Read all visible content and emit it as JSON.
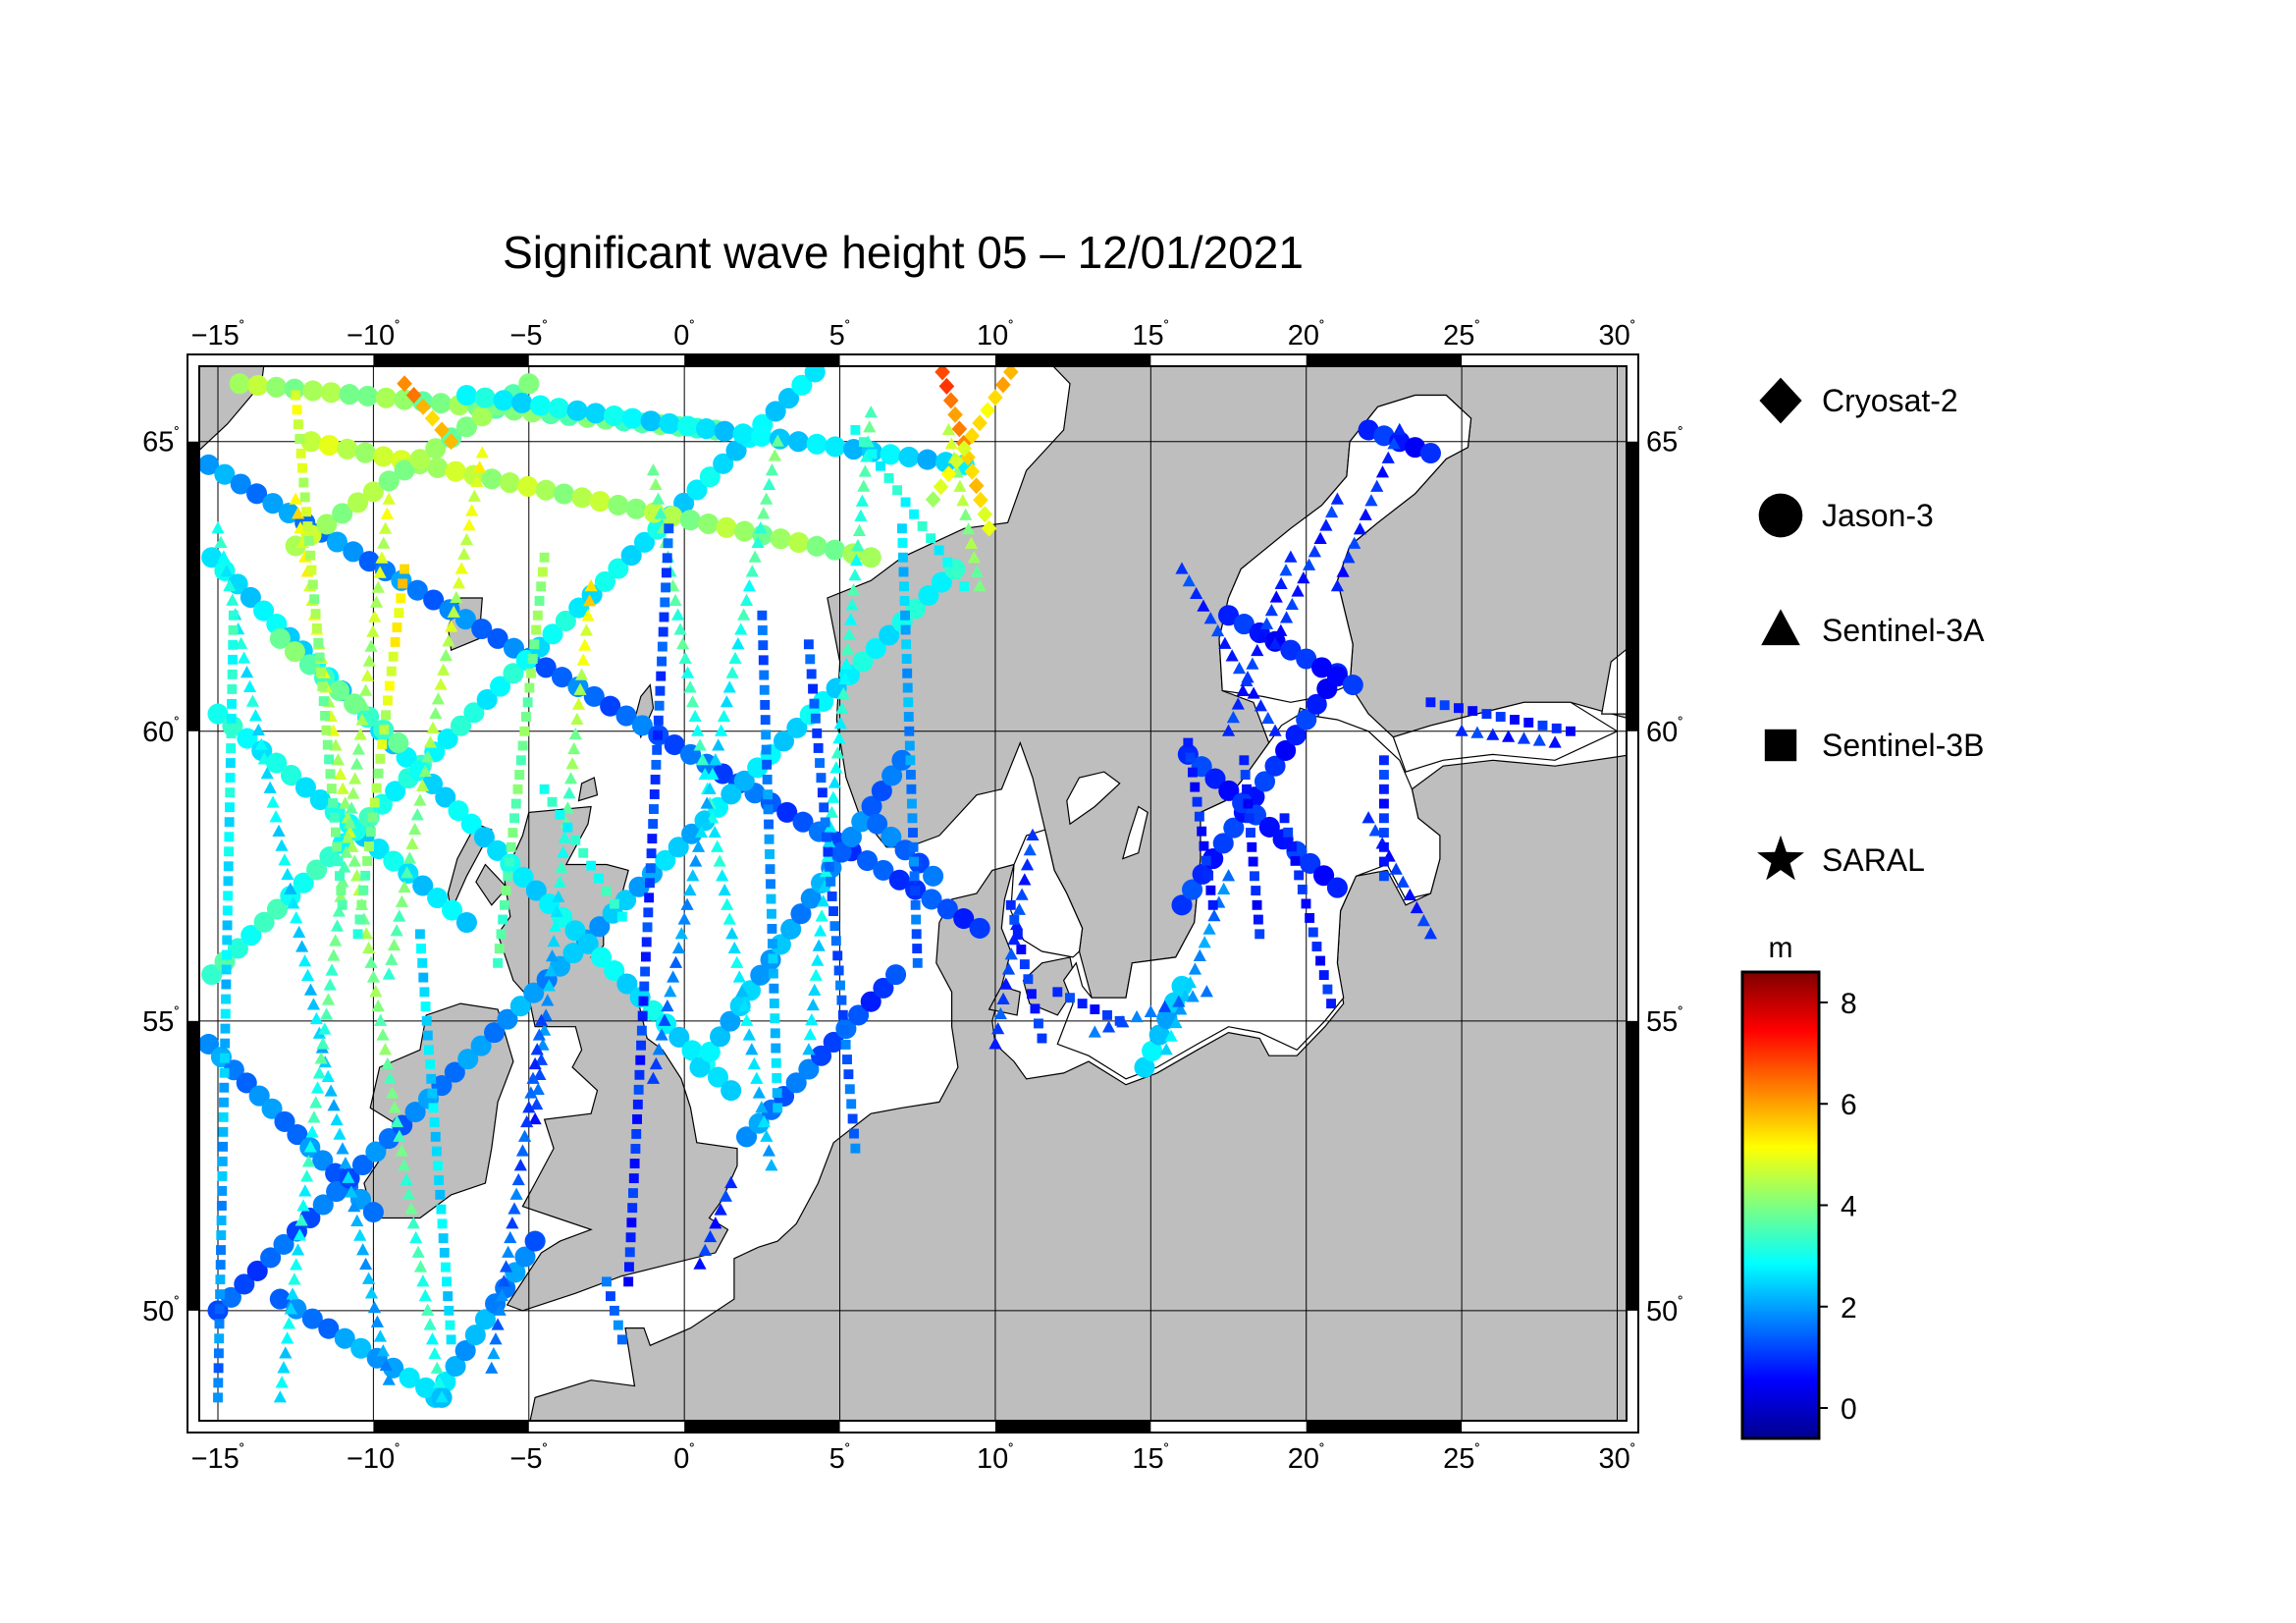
{
  "title": "Significant wave height 05 – 12/01/2021",
  "map": {
    "projection": "equirectangular (stretched latitude)",
    "lon_range": [
      -15.6,
      30.3
    ],
    "lat_range": [
      48.1,
      66.3
    ],
    "land_color": "#bebebe",
    "sea_color": "#ffffff",
    "coastline_color": "#000000",
    "grid": true,
    "lon_ticks": [
      -15,
      -10,
      -5,
      0,
      5,
      10,
      15,
      20,
      25,
      30
    ],
    "lon_tick_labels": [
      "−15",
      "−10",
      "−5",
      "0",
      "5",
      "10",
      "15",
      "20",
      "25",
      "30"
    ],
    "lat_ticks": [
      50,
      55,
      60,
      65
    ],
    "lat_tick_labels": [
      "50",
      "55",
      "60",
      "65"
    ],
    "degree_symbol": "˚"
  },
  "legend": {
    "items": [
      {
        "name": "Cryosat-2",
        "symbol": "diamond-icon"
      },
      {
        "name": "Jason-3",
        "symbol": "circle-icon"
      },
      {
        "name": "Sentinel-3A",
        "symbol": "triangle-icon"
      },
      {
        "name": "Sentinel-3B",
        "symbol": "square-icon"
      },
      {
        "name": "SARAL",
        "symbol": "star-icon"
      }
    ]
  },
  "colorbar": {
    "unit": "m",
    "min": -0.6,
    "max": 8.6,
    "ticks": [
      0,
      2,
      4,
      6,
      8
    ],
    "tick_labels": [
      "0",
      "2",
      "4",
      "6",
      "8"
    ],
    "colormap": "jet"
  },
  "chart_data": {
    "type": "scatter",
    "title": "Significant wave height 05 – 12/01/2021",
    "xlabel": "",
    "ylabel": "",
    "x_unit": "longitude (°E)",
    "y_unit": "latitude (°N)",
    "value_unit": "m",
    "xlim": [
      -15.6,
      30.3
    ],
    "ylim": [
      48.1,
      66.3
    ],
    "tracks": [
      {
        "satellite": "Jason-3",
        "from": [
          -15.3,
          64.6
        ],
        "to": [
          9.5,
          56.6
        ],
        "swh": [
          1.9,
          1.1
        ]
      },
      {
        "satellite": "Jason-3",
        "from": [
          -15.0,
          60.3
        ],
        "to": [
          -7.0,
          56.7
        ],
        "swh": [
          3.0,
          2.5
        ]
      },
      {
        "satellite": "Jason-3",
        "from": [
          -15.2,
          55.8
        ],
        "to": [
          4.2,
          66.2
        ],
        "swh": [
          3.3,
          2.5
        ]
      },
      {
        "satellite": "Jason-3",
        "from": [
          -15.3,
          54.6
        ],
        "to": [
          -10.0,
          51.7
        ],
        "swh": [
          1.8,
          1.6
        ]
      },
      {
        "satellite": "Jason-3",
        "from": [
          -15.0,
          50.0
        ],
        "to": [
          8.7,
          62.8
        ],
        "swh": [
          1.2,
          3.0
        ]
      },
      {
        "satellite": "Jason-3",
        "from": [
          -15.2,
          63.0
        ],
        "to": [
          1.5,
          53.8
        ],
        "swh": [
          2.6,
          2.7
        ]
      },
      {
        "satellite": "Jason-3",
        "from": [
          -8.0,
          48.5
        ],
        "to": [
          -4.8,
          51.2
        ],
        "swh": [
          2.4,
          1.6
        ]
      },
      {
        "satellite": "Jason-3",
        "from": [
          -13.0,
          50.2
        ],
        "to": [
          -7.8,
          48.5
        ],
        "swh": [
          1.4,
          2.6
        ]
      },
      {
        "satellite": "Jason-3",
        "from": [
          -14.3,
          66.0
        ],
        "to": [
          1.0,
          65.2
        ],
        "swh": [
          4.3,
          3.6
        ]
      },
      {
        "satellite": "Jason-3",
        "from": [
          -12.0,
          65.0
        ],
        "to": [
          6.0,
          63.0
        ],
        "swh": [
          4.6,
          4.1
        ]
      },
      {
        "satellite": "Jason-3",
        "from": [
          -12.5,
          63.2
        ],
        "to": [
          -5.0,
          66.0
        ],
        "swh": [
          4.4,
          3.9
        ]
      },
      {
        "satellite": "Jason-3",
        "from": [
          -13.0,
          61.6
        ],
        "to": [
          -9.2,
          59.8
        ],
        "swh": [
          3.8,
          3.5
        ]
      },
      {
        "satellite": "Jason-3",
        "from": [
          -7.0,
          65.8
        ],
        "to": [
          9.0,
          64.6
        ],
        "swh": [
          2.8,
          2.4
        ]
      },
      {
        "satellite": "Jason-3",
        "from": [
          2.0,
          53.0
        ],
        "to": [
          6.8,
          55.8
        ],
        "swh": [
          1.8,
          1.0
        ]
      },
      {
        "satellite": "Jason-3",
        "from": [
          0.5,
          54.2
        ],
        "to": [
          7.0,
          59.5
        ],
        "swh": [
          2.5,
          1.4
        ]
      },
      {
        "satellite": "Jason-3",
        "from": [
          6.2,
          58.4
        ],
        "to": [
          8.0,
          57.5
        ],
        "swh": [
          1.5,
          1.5
        ]
      },
      {
        "satellite": "Jason-3",
        "from": [
          14.8,
          54.2
        ],
        "to": [
          16.0,
          55.6
        ],
        "swh": [
          2.5,
          2.2
        ]
      },
      {
        "satellite": "Jason-3",
        "from": [
          16.0,
          57.0
        ],
        "to": [
          21.0,
          61.0
        ],
        "swh": [
          1.0,
          0.8
        ]
      },
      {
        "satellite": "Jason-3",
        "from": [
          17.5,
          62.0
        ],
        "to": [
          21.5,
          60.8
        ],
        "swh": [
          0.8,
          0.8
        ]
      },
      {
        "satellite": "Jason-3",
        "from": [
          22.0,
          65.2
        ],
        "to": [
          24.0,
          64.8
        ],
        "swh": [
          0.8,
          0.8
        ]
      },
      {
        "satellite": "Jason-3",
        "from": [
          16.2,
          59.6
        ],
        "to": [
          21.0,
          57.3
        ],
        "swh": [
          0.9,
          0.9
        ]
      },
      {
        "satellite": "Sentinel-3A",
        "from": [
          -12.5,
          64.0
        ],
        "to": [
          -7.8,
          48.5
        ],
        "swh": [
          5.2,
          3.0
        ]
      },
      {
        "satellite": "Sentinel-3A",
        "from": [
          -15.0,
          63.5
        ],
        "to": [
          -9.5,
          48.8
        ],
        "swh": [
          3.0,
          2.0
        ]
      },
      {
        "satellite": "Sentinel-3A",
        "from": [
          -9.5,
          64.0
        ],
        "to": [
          -13.0,
          48.5
        ],
        "swh": [
          4.8,
          2.5
        ]
      },
      {
        "satellite": "Sentinel-3A",
        "from": [
          -6.5,
          64.8
        ],
        "to": [
          -9.5,
          55.8
        ],
        "swh": [
          5.0,
          3.6
        ]
      },
      {
        "satellite": "Sentinel-3A",
        "from": [
          -3.0,
          62.5
        ],
        "to": [
          -4.8,
          53.3
        ],
        "swh": [
          5.4,
          1.0
        ]
      },
      {
        "satellite": "Sentinel-3A",
        "from": [
          -4.6,
          55.0
        ],
        "to": [
          -6.2,
          49.0
        ],
        "swh": [
          1.1,
          1.7
        ]
      },
      {
        "satellite": "Sentinel-3A",
        "from": [
          -1.0,
          64.5
        ],
        "to": [
          2.8,
          52.5
        ],
        "swh": [
          3.8,
          2.2
        ]
      },
      {
        "satellite": "Sentinel-3A",
        "from": [
          3.0,
          65.0
        ],
        "to": [
          -1.0,
          54.0
        ],
        "swh": [
          3.8,
          1.3
        ]
      },
      {
        "satellite": "Sentinel-3A",
        "from": [
          6.0,
          65.5
        ],
        "to": [
          4.0,
          54.5
        ],
        "swh": [
          3.5,
          2.5
        ]
      },
      {
        "satellite": "Sentinel-3A",
        "from": [
          8.5,
          65.2
        ],
        "to": [
          9.5,
          62.5
        ],
        "swh": [
          4.5,
          4.0
        ]
      },
      {
        "satellite": "Sentinel-3A",
        "from": [
          11.2,
          58.2
        ],
        "to": [
          10.0,
          54.6
        ],
        "swh": [
          1.0,
          1.1
        ]
      },
      {
        "satellite": "Sentinel-3A",
        "from": [
          1.5,
          52.2
        ],
        "to": [
          0.5,
          50.8
        ],
        "swh": [
          0.9,
          0.9
        ]
      },
      {
        "satellite": "Sentinel-3A",
        "from": [
          16.0,
          62.8
        ],
        "to": [
          19.0,
          60.0
        ],
        "swh": [
          1.0,
          0.9
        ]
      },
      {
        "satellite": "Sentinel-3A",
        "from": [
          19.5,
          63.0
        ],
        "to": [
          17.5,
          60.0
        ],
        "swh": [
          0.9,
          0.9
        ]
      },
      {
        "satellite": "Sentinel-3A",
        "from": [
          21.0,
          64.0
        ],
        "to": [
          19.0,
          61.5
        ],
        "swh": [
          0.9,
          0.9
        ]
      },
      {
        "satellite": "Sentinel-3A",
        "from": [
          23.0,
          65.2
        ],
        "to": [
          21.0,
          62.5
        ],
        "swh": [
          0.9,
          0.9
        ]
      },
      {
        "satellite": "Sentinel-3A",
        "from": [
          17.5,
          57.5
        ],
        "to": [
          15.5,
          54.5
        ],
        "swh": [
          1.5,
          2.5
        ]
      },
      {
        "satellite": "Sentinel-3A",
        "from": [
          16.8,
          55.5
        ],
        "to": [
          13.2,
          54.8
        ],
        "swh": [
          1.6,
          1.4
        ]
      },
      {
        "satellite": "Sentinel-3A",
        "from": [
          22.0,
          58.5
        ],
        "to": [
          24.0,
          56.5
        ],
        "swh": [
          0.9,
          0.9
        ]
      },
      {
        "satellite": "Sentinel-3A",
        "from": [
          25.0,
          60.0
        ],
        "to": [
          28.0,
          59.8
        ],
        "swh": [
          0.9,
          0.9
        ]
      },
      {
        "satellite": "Sentinel-3B",
        "from": [
          -14.5,
          62.0
        ],
        "to": [
          -15.0,
          48.5
        ],
        "swh": [
          3.2,
          1.6
        ]
      },
      {
        "satellite": "Sentinel-3B",
        "from": [
          -12.5,
          65.8
        ],
        "to": [
          -11.0,
          57.0
        ],
        "swh": [
          4.8,
          3.5
        ]
      },
      {
        "satellite": "Sentinel-3B",
        "from": [
          -9.0,
          62.8
        ],
        "to": [
          -10.5,
          56.5
        ],
        "swh": [
          5.5,
          3.5
        ]
      },
      {
        "satellite": "Sentinel-3B",
        "from": [
          -4.5,
          63.0
        ],
        "to": [
          -6.0,
          56.0
        ],
        "swh": [
          4.2,
          3.5
        ]
      },
      {
        "satellite": "Sentinel-3B",
        "from": [
          -0.5,
          63.5
        ],
        "to": [
          -1.8,
          50.5
        ],
        "swh": [
          1.3,
          0.8
        ]
      },
      {
        "satellite": "Sentinel-3B",
        "from": [
          2.5,
          62.0
        ],
        "to": [
          3.0,
          53.5
        ],
        "swh": [
          1.3,
          2.5
        ]
      },
      {
        "satellite": "Sentinel-3B",
        "from": [
          4.0,
          61.5
        ],
        "to": [
          5.5,
          52.8
        ],
        "swh": [
          1.2,
          1.5
        ]
      },
      {
        "satellite": "Sentinel-3B",
        "from": [
          7.0,
          63.5
        ],
        "to": [
          7.5,
          56.0
        ],
        "swh": [
          2.5,
          1.3
        ]
      },
      {
        "satellite": "Sentinel-3B",
        "from": [
          5.5,
          65.2
        ],
        "to": [
          9.0,
          62.5
        ],
        "swh": [
          3.0,
          3.0
        ]
      },
      {
        "satellite": "Sentinel-3B",
        "from": [
          -4.5,
          59.0
        ],
        "to": [
          -2.0,
          56.8
        ],
        "swh": [
          3.0,
          3.2
        ]
      },
      {
        "satellite": "Sentinel-3B",
        "from": [
          -7.5,
          49.5
        ],
        "to": [
          -8.5,
          56.5
        ],
        "swh": [
          2.6,
          2.5
        ]
      },
      {
        "satellite": "Sentinel-3B",
        "from": [
          -2.0,
          49.5
        ],
        "to": [
          -2.5,
          50.5
        ],
        "swh": [
          1.5,
          1.5
        ]
      },
      {
        "satellite": "Sentinel-3B",
        "from": [
          16.2,
          59.8
        ],
        "to": [
          17.0,
          57.0
        ],
        "swh": [
          0.8,
          0.8
        ]
      },
      {
        "satellite": "Sentinel-3B",
        "from": [
          18.0,
          59.5
        ],
        "to": [
          18.5,
          56.5
        ],
        "swh": [
          0.8,
          0.8
        ]
      },
      {
        "satellite": "Sentinel-3B",
        "from": [
          19.3,
          58.5
        ],
        "to": [
          20.8,
          55.3
        ],
        "swh": [
          0.8,
          0.8
        ]
      },
      {
        "satellite": "Sentinel-3B",
        "from": [
          22.5,
          59.5
        ],
        "to": [
          22.5,
          57.5
        ],
        "swh": [
          0.9,
          0.9
        ]
      },
      {
        "satellite": "Sentinel-3B",
        "from": [
          24.0,
          60.5
        ],
        "to": [
          28.5,
          60.0
        ],
        "swh": [
          0.8,
          0.8
        ]
      },
      {
        "satellite": "Sentinel-3B",
        "from": [
          12.0,
          55.5
        ],
        "to": [
          14.0,
          55.0
        ],
        "swh": [
          0.9,
          0.9
        ]
      },
      {
        "satellite": "Sentinel-3B",
        "from": [
          10.5,
          57.0
        ],
        "to": [
          11.5,
          54.7
        ],
        "swh": [
          0.9,
          0.9
        ]
      },
      {
        "satellite": "Cryosat-2",
        "from": [
          8.3,
          66.2
        ],
        "to": [
          9.8,
          63.5
        ],
        "swh": [
          6.8,
          5.0
        ]
      },
      {
        "satellite": "Cryosat-2",
        "from": [
          10.5,
          66.2
        ],
        "to": [
          8.0,
          64.0
        ],
        "swh": [
          5.8,
          4.6
        ]
      },
      {
        "satellite": "Cryosat-2",
        "from": [
          -9.0,
          66.0
        ],
        "to": [
          -7.5,
          65.0
        ],
        "swh": [
          6.2,
          5.5
        ]
      }
    ]
  }
}
